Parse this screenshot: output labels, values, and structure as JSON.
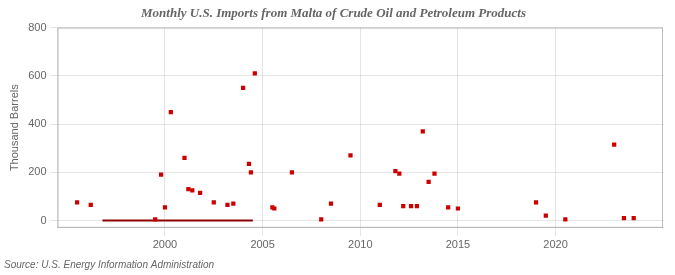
{
  "chart_data": {
    "type": "scatter",
    "title": "Monthly U.S. Imports from Malta of Crude Oil and Petroleum Products",
    "ylabel": "Thousand Barrels",
    "annotation": "Source: U.S. Energy Information Administration",
    "xlim": [
      1994.5,
      2025.5
    ],
    "xticks": [
      2000,
      2005,
      2010,
      2015,
      2020
    ],
    "ylim": [
      -30,
      800
    ],
    "yticks": [
      0,
      200,
      400,
      600,
      800
    ],
    "grid": true,
    "series": [
      {
        "type": "scatter",
        "color": "#cc0000",
        "marker": "square",
        "x": [
          1995.5,
          1996.2,
          1999.5,
          1999.8,
          2000.0,
          2000.3,
          2001.0,
          2001.2,
          2001.4,
          2001.8,
          2002.5,
          2003.2,
          2003.5,
          2004.0,
          2004.3,
          2004.4,
          2004.6,
          2005.5,
          2005.6,
          2006.5,
          2008.0,
          2008.5,
          2009.5,
          2011.0,
          2011.8,
          2012.0,
          2012.2,
          2012.6,
          2012.9,
          2013.2,
          2013.5,
          2013.8,
          2014.5,
          2015.0,
          2019.0,
          2019.5,
          2020.5,
          2023.0,
          2023.5,
          2024.0
        ],
        "values": [
          75,
          65,
          5,
          190,
          55,
          450,
          260,
          130,
          125,
          115,
          75,
          65,
          70,
          550,
          235,
          200,
          610,
          55,
          50,
          200,
          5,
          70,
          270,
          65,
          205,
          195,
          60,
          60,
          60,
          370,
          160,
          195,
          55,
          50,
          75,
          20,
          5,
          315,
          10,
          10
        ]
      },
      {
        "type": "line",
        "color": "#8b0000",
        "x": [
          1996.8,
          2004.5
        ],
        "values": [
          0,
          0
        ]
      }
    ]
  }
}
